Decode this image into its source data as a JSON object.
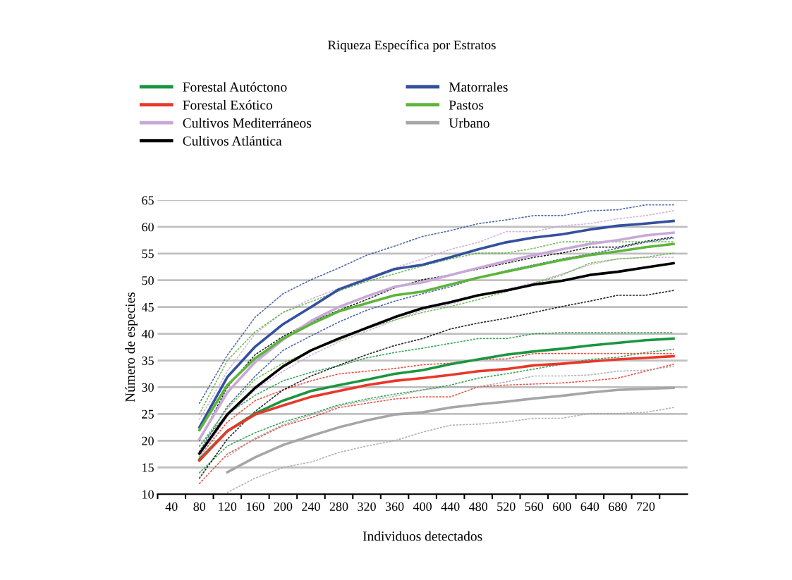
{
  "chart_data": {
    "type": "line",
    "title": "Riqueza Específica por Estratos",
    "xlabel": "Individuos detectados",
    "ylabel": "Número de especies",
    "categories": [
      "40",
      "80",
      "120",
      "160",
      "200",
      "240",
      "280",
      "320",
      "360",
      "400",
      "440",
      "480",
      "520",
      "560",
      "600",
      "640",
      "680",
      "720",
      null
    ],
    "ylim": [
      10,
      65
    ],
    "yticks": [
      10,
      15,
      20,
      25,
      30,
      35,
      40,
      45,
      50,
      55,
      60,
      65
    ],
    "grid": "y",
    "legend": "top",
    "line_style": "solid",
    "marker": "none",
    "series": [
      {
        "name": "Forestal Autóctono",
        "color": "#1a9641",
        "values": [
          null,
          16.5,
          21.8,
          25.1,
          27.5,
          29.3,
          30.4,
          31.4,
          32.5,
          33.2,
          34.3,
          35.2,
          36.1,
          36.7,
          37.2,
          37.8,
          38.3,
          38.8,
          39.1
        ]
      },
      {
        "name": "Forestal Exótico",
        "color": "#e8382a",
        "values": [
          null,
          16.3,
          21.8,
          24.9,
          26.6,
          28.2,
          29.3,
          30.4,
          31.2,
          31.7,
          32.3,
          33,
          33.4,
          34.1,
          34.4,
          34.8,
          35.2,
          35.5,
          35.8
        ]
      },
      {
        "name": "Cultivos Mediterráneos",
        "color": "#c9a8d8",
        "values": [
          null,
          20.3,
          29,
          34.7,
          38.9,
          42.4,
          45,
          47,
          48.8,
          49.6,
          51,
          52.3,
          53.6,
          54.7,
          55.8,
          56.8,
          57.5,
          58.4,
          58.9
        ]
      },
      {
        "name": "Cultivos Atlántica",
        "color": "#000000",
        "values": [
          null,
          17.6,
          24.9,
          29.9,
          33.9,
          36.9,
          39.1,
          41.1,
          43.1,
          44.8,
          45.9,
          47.2,
          48.1,
          49.2,
          49.9,
          51,
          51.6,
          52.4,
          53.2
        ]
      },
      {
        "name": "Matorrales",
        "color": "#34509e",
        "values": [
          null,
          22.5,
          31.9,
          37.6,
          41.8,
          45,
          48.3,
          50.2,
          52.1,
          52.9,
          54.3,
          55.8,
          57.1,
          58,
          58.6,
          59.5,
          60.2,
          60.6,
          61.1
        ]
      },
      {
        "name": "Pastos",
        "color": "#5db53b",
        "values": [
          null,
          22,
          30.4,
          35.4,
          39.1,
          41.8,
          44.2,
          45.7,
          47.2,
          47.9,
          49.2,
          50.5,
          51.6,
          52.7,
          53.8,
          54.7,
          55.4,
          56.2,
          56.8
        ]
      },
      {
        "name": "Urbano",
        "color": "#a6a6a6",
        "values": [
          null,
          null,
          14.1,
          16.9,
          19.2,
          20.9,
          22.5,
          23.8,
          24.9,
          25.3,
          26.2,
          26.8,
          27.3,
          27.9,
          28.4,
          29,
          29.5,
          29.7,
          29.9
        ]
      },
      {
        "color": "#1a9641",
        "line_style": "dotted",
        "values": [
          null,
          14,
          19,
          21.5,
          23.5,
          25,
          26.7,
          27.8,
          28.7,
          29.5,
          30.4,
          31.7,
          32.5,
          33.4,
          34.3,
          35.2,
          35.6,
          36.5,
          37.1
        ]
      },
      {
        "color": "#1a9641",
        "line_style": "dotted",
        "values": [
          null,
          19,
          25,
          28.5,
          31.2,
          32.8,
          34,
          35.5,
          36.5,
          37.3,
          38.2,
          39.1,
          39.1,
          40,
          40.2,
          40.2,
          40.2,
          40.2,
          40.2
        ]
      },
      {
        "color": "#e8382a",
        "line_style": "dotted",
        "values": [
          null,
          12,
          17.5,
          20.3,
          22.8,
          24.3,
          26.2,
          27,
          27.8,
          28.2,
          28.2,
          30.1,
          30.4,
          30.6,
          30.8,
          31.2,
          31.7,
          33,
          34.3
        ]
      },
      {
        "color": "#e8382a",
        "line_style": "dotted",
        "values": [
          null,
          17,
          23.5,
          27.5,
          29.5,
          31.2,
          32.5,
          33,
          33.5,
          34.2,
          34.5,
          35.2,
          35.3,
          36.3,
          36.3,
          36.3,
          36.3,
          36.3,
          36.3
        ]
      },
      {
        "color": "#c9a8d8",
        "line_style": "dotted",
        "values": [
          null,
          17,
          24.5,
          29.5,
          33,
          36,
          38.5,
          40.5,
          42.5,
          44.4,
          45.5,
          47.2,
          48.3,
          49.6,
          51.2,
          52.9,
          54,
          54.3,
          54.3
        ]
      },
      {
        "color": "#c9a8d8",
        "line_style": "dotted",
        "values": [
          null,
          24,
          33,
          40,
          44,
          46.5,
          48.5,
          50.5,
          52.3,
          54,
          55.8,
          57.1,
          59.1,
          59.1,
          60.2,
          60.6,
          61.5,
          62.1,
          63
        ]
      },
      {
        "color": "#000000",
        "line_style": "dotted",
        "values": [
          null,
          13,
          20.3,
          25.5,
          29.5,
          32.1,
          34.1,
          36.1,
          37.8,
          39.1,
          40.9,
          42,
          42.9,
          44,
          45.1,
          46.1,
          47.2,
          47.2,
          48.1
        ]
      },
      {
        "color": "#000000",
        "line_style": "dotted",
        "values": [
          null,
          20,
          30,
          36.1,
          39.5,
          42.2,
          44.4,
          46.4,
          48.6,
          50.1,
          51,
          52.1,
          53.2,
          54.3,
          55.1,
          56.2,
          56.2,
          57.3,
          58.1
        ]
      },
      {
        "color": "#34509e",
        "line_style": "dotted",
        "values": [
          null,
          18,
          26.4,
          32.1,
          36.9,
          39.6,
          42.2,
          44.4,
          46.1,
          47.5,
          48.8,
          50.5,
          51.8,
          52.9,
          54,
          54.9,
          56,
          57.1,
          57.9
        ]
      },
      {
        "color": "#34509e",
        "line_style": "dotted",
        "values": [
          null,
          27,
          36,
          43.1,
          47.5,
          50.1,
          52.3,
          54.7,
          56.4,
          58.2,
          59.3,
          60.6,
          61.3,
          62.1,
          62.1,
          63,
          63.2,
          64.1,
          64.1
        ]
      },
      {
        "color": "#5db53b",
        "line_style": "dotted",
        "values": [
          null,
          19,
          26,
          31.5,
          34.5,
          36.8,
          38.8,
          41,
          42.6,
          44,
          45.1,
          46.4,
          47.9,
          49.4,
          51,
          53.2,
          54,
          54.3,
          55.1
        ]
      },
      {
        "color": "#5db53b",
        "line_style": "dotted",
        "values": [
          null,
          25,
          35,
          40.4,
          44,
          46,
          48,
          49.8,
          51.2,
          52.7,
          54,
          55.1,
          55.1,
          56,
          57.2,
          57.2,
          57.2,
          57.2,
          57.2
        ]
      },
      {
        "color": "#a6a6a6",
        "line_style": "dotted",
        "values": [
          null,
          null,
          10.3,
          13,
          15,
          16,
          17.8,
          19,
          20,
          21.6,
          22.9,
          23.1,
          23.5,
          24.2,
          24.2,
          25.1,
          25.1,
          25.3,
          26.2
        ]
      },
      {
        "color": "#a6a6a6",
        "line_style": "dotted",
        "values": [
          null,
          null,
          17,
          20.5,
          23,
          24.8,
          26.5,
          27.5,
          28.3,
          29.5,
          30.1,
          30.1,
          31,
          32.1,
          32.1,
          32.3,
          33,
          33.2,
          33.9
        ]
      }
    ]
  }
}
